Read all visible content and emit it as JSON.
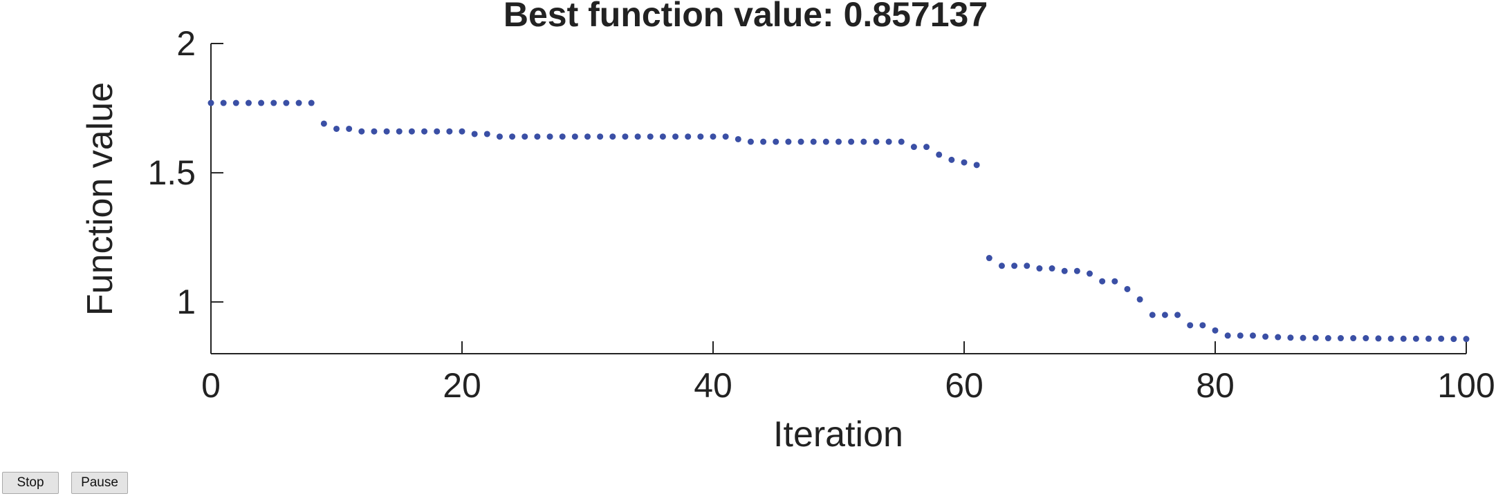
{
  "chart_data": {
    "type": "scatter",
    "title": "Best function value: 0.857137",
    "xlabel": "Iteration",
    "ylabel": "Function value",
    "xlim": [
      0,
      100
    ],
    "ylim": [
      0.8,
      2.0
    ],
    "xticks": [
      0,
      20,
      40,
      60,
      80,
      100
    ],
    "xtick_labels": [
      "0",
      "20",
      "40",
      "60",
      "80",
      "100"
    ],
    "yticks": [
      1,
      1.5,
      2
    ],
    "ytick_labels": [
      "1",
      "1.5",
      "2"
    ],
    "grid": false,
    "marker_color": "#3a4fa5",
    "series": [
      {
        "x": [
          0,
          1,
          2,
          3,
          4,
          5,
          6,
          7,
          8,
          9,
          10,
          11,
          12,
          13,
          14,
          15,
          16,
          17,
          18,
          19,
          20,
          21,
          22,
          23,
          24,
          25,
          26,
          27,
          28,
          29,
          30,
          31,
          32,
          33,
          34,
          35,
          36,
          37,
          38,
          39,
          40,
          41,
          42,
          43,
          44,
          45,
          46,
          47,
          48,
          49,
          50,
          51,
          52,
          53,
          54,
          55,
          56,
          57,
          58,
          59,
          60,
          61,
          62,
          63,
          64,
          65,
          66,
          67,
          68,
          69,
          70,
          71,
          72,
          73,
          74,
          75,
          76,
          77,
          78,
          79,
          80,
          81,
          82,
          83,
          84,
          85,
          86,
          87,
          88,
          89,
          90,
          91,
          92,
          93,
          94,
          95,
          96,
          97,
          98,
          99,
          100
        ],
        "y": [
          1.77,
          1.77,
          1.77,
          1.77,
          1.77,
          1.77,
          1.77,
          1.77,
          1.77,
          1.69,
          1.67,
          1.67,
          1.66,
          1.66,
          1.66,
          1.66,
          1.66,
          1.66,
          1.66,
          1.66,
          1.66,
          1.65,
          1.65,
          1.64,
          1.64,
          1.64,
          1.64,
          1.64,
          1.64,
          1.64,
          1.64,
          1.64,
          1.64,
          1.64,
          1.64,
          1.64,
          1.64,
          1.64,
          1.64,
          1.64,
          1.64,
          1.64,
          1.63,
          1.62,
          1.62,
          1.62,
          1.62,
          1.62,
          1.62,
          1.62,
          1.62,
          1.62,
          1.62,
          1.62,
          1.62,
          1.62,
          1.6,
          1.6,
          1.57,
          1.55,
          1.54,
          1.53,
          1.17,
          1.14,
          1.14,
          1.14,
          1.13,
          1.13,
          1.12,
          1.12,
          1.11,
          1.08,
          1.08,
          1.05,
          1.01,
          0.95,
          0.95,
          0.95,
          0.91,
          0.91,
          0.89,
          0.87,
          0.87,
          0.87,
          0.866,
          0.864,
          0.862,
          0.861,
          0.861,
          0.86,
          0.86,
          0.86,
          0.86,
          0.859,
          0.858,
          0.858,
          0.858,
          0.858,
          0.858,
          0.857,
          0.857
        ]
      }
    ]
  },
  "controls": {
    "stop_label": "Stop",
    "pause_label": "Pause"
  }
}
